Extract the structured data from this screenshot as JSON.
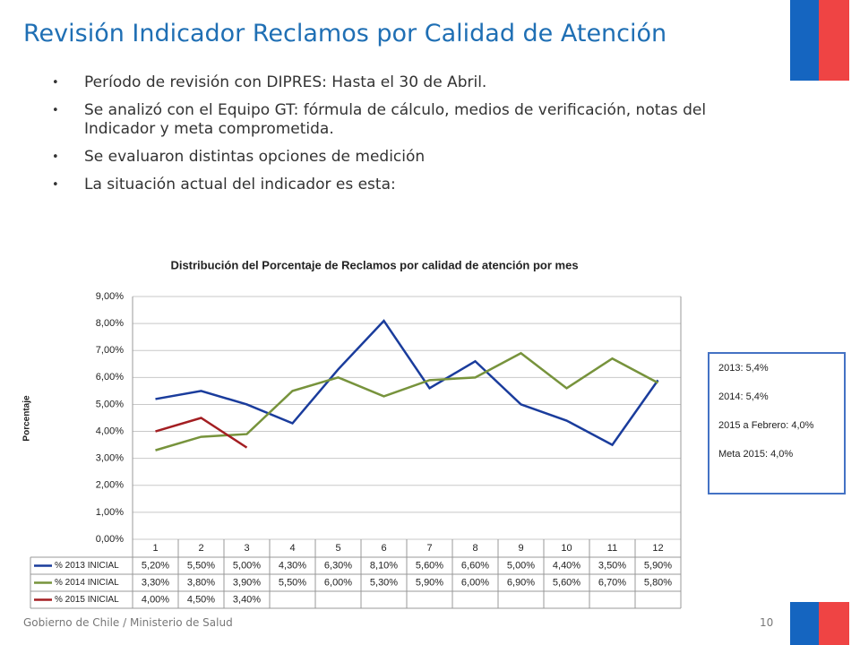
{
  "header": {
    "title": "Revisión Indicador Reclamos por Calidad de Atención"
  },
  "bullets": [
    "Período de revisión con DIPRES:  Hasta el 30 de Abril.",
    "Se analizó con el Equipo GT:  fórmula de cálculo, medios de verificación, notas del Indicador y meta comprometida.",
    "Se evaluaron distintas opciones de medición",
    "La situación actual del indicador es esta:"
  ],
  "chart_data": {
    "type": "line",
    "title": "Distribución del Porcentaje de Reclamos por calidad de atención por mes",
    "y_label": "Porcentaje",
    "categories": [
      "1",
      "2",
      "3",
      "4",
      "5",
      "6",
      "7",
      "8",
      "9",
      "10",
      "11",
      "12"
    ],
    "series": [
      {
        "name": "% 2013 INICIAL",
        "color": "#1a3c9c",
        "values": [
          5.2,
          5.5,
          5.0,
          4.3,
          6.3,
          8.1,
          5.6,
          6.6,
          5.0,
          4.4,
          3.5,
          5.9
        ],
        "value_labels": [
          "5,20%",
          "5,50%",
          "5,00%",
          "4,30%",
          "6,30%",
          "8,10%",
          "5,60%",
          "6,60%",
          "5,00%",
          "4,40%",
          "3,50%",
          "5,90%"
        ]
      },
      {
        "name": "% 2014 INICIAL",
        "color": "#77933c",
        "values": [
          3.3,
          3.8,
          3.9,
          5.5,
          6.0,
          5.3,
          5.9,
          6.0,
          6.9,
          5.6,
          6.7,
          5.8
        ],
        "value_labels": [
          "3,30%",
          "3,80%",
          "3,90%",
          "5,50%",
          "6,00%",
          "5,30%",
          "5,90%",
          "6,00%",
          "6,90%",
          "5,60%",
          "6,70%",
          "5,80%"
        ]
      },
      {
        "name": "% 2015 INICIAL",
        "color": "#a31e22",
        "values": [
          4.0,
          4.5,
          3.4,
          null,
          null,
          null,
          null,
          null,
          null,
          null,
          null,
          null
        ],
        "value_labels": [
          "4,00%",
          "4,50%",
          "3,40%",
          null,
          null,
          null,
          null,
          null,
          null,
          null,
          null,
          null
        ]
      }
    ],
    "ylim": [
      0,
      9
    ],
    "yticks": [
      {
        "value": 0,
        "label": "0,00%"
      },
      {
        "value": 1,
        "label": "1,00%"
      },
      {
        "value": 2,
        "label": "2,00%"
      },
      {
        "value": 3,
        "label": "3,00%"
      },
      {
        "value": 4,
        "label": "4,00%"
      },
      {
        "value": 5,
        "label": "5,00%"
      },
      {
        "value": 6,
        "label": "6,00%"
      },
      {
        "value": 7,
        "label": "7,00%"
      },
      {
        "value": 8,
        "label": "8,00%"
      },
      {
        "value": 9,
        "label": "9,00%"
      }
    ],
    "grid": true
  },
  "info_box": {
    "lines": [
      "2013:  5,4%",
      "2014:  5,4%",
      "2015 a Febrero: 4,0%",
      "Meta 2015: 4,0%"
    ]
  },
  "footer": {
    "text": "Gobierno de Chile / Ministerio de Salud",
    "page": "10"
  }
}
